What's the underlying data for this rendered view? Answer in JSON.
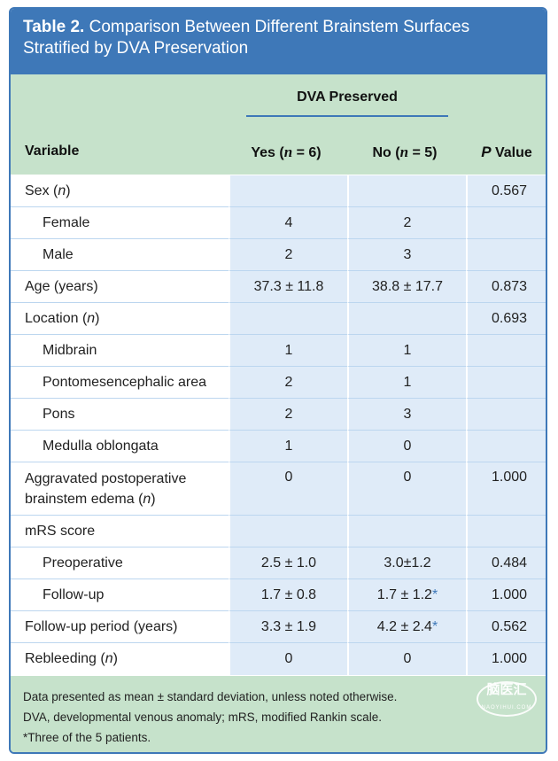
{
  "title": {
    "lead": "Table 2.",
    "text": " Comparison Between Different Brainstem Surfaces Stratified by DVA Preservation"
  },
  "header": {
    "group": "DVA Preserved",
    "variable": "Variable",
    "yes_prefix": "Yes (",
    "yes_n": "n",
    "yes_suffix": " = 6)",
    "no_prefix": "No (",
    "no_n": "n",
    "no_suffix": " = 5)",
    "p_italic": "P",
    "p_suffix": " Value"
  },
  "rows": [
    {
      "label": "Sex (",
      "label_i": "n",
      "label_end": ")",
      "yes": "",
      "no": "",
      "p": "0.567",
      "sub": false
    },
    {
      "label": "Female",
      "yes": "4",
      "no": "2",
      "p": "",
      "sub": true
    },
    {
      "label": "Male",
      "yes": "2",
      "no": "3",
      "p": "",
      "sub": true
    },
    {
      "label": "Age (years)",
      "yes": "37.3 ± 11.8",
      "no": "38.8 ± 17.7",
      "p": "0.873",
      "sub": false
    },
    {
      "label": "Location (",
      "label_i": "n",
      "label_end": ")",
      "yes": "",
      "no": "",
      "p": "0.693",
      "sub": false
    },
    {
      "label": "Midbrain",
      "yes": "1",
      "no": "1",
      "p": "",
      "sub": true
    },
    {
      "label": "Pontomesencephalic area",
      "yes": "2",
      "no": "1",
      "p": "",
      "sub": true
    },
    {
      "label": "Pons",
      "yes": "2",
      "no": "3",
      "p": "",
      "sub": true
    },
    {
      "label": "Medulla oblongata",
      "yes": "1",
      "no": "0",
      "p": "",
      "sub": true
    },
    {
      "label": "Aggravated postoperative",
      "label2": "brainstem edema (",
      "label_i": "n",
      "label_end": ")",
      "yes": "0",
      "no": "0",
      "p": "1.000",
      "sub": false
    },
    {
      "label": "mRS score",
      "yes": "",
      "no": "",
      "p": "",
      "sub": false
    },
    {
      "label": "Preoperative",
      "yes": "2.5 ± 1.0",
      "no": "3.0±1.2",
      "p": "0.484",
      "sub": true
    },
    {
      "label": "Follow-up",
      "yes": "1.7 ± 0.8",
      "no": "1.7 ± 1.2",
      "no_mark": "*",
      "p": "1.000",
      "sub": true
    },
    {
      "label": "Follow-up period (years)",
      "yes": "3.3 ± 1.9",
      "no": "4.2 ± 2.4",
      "no_mark": "*",
      "p": "0.562",
      "sub": false
    },
    {
      "label": "Rebleeding (",
      "label_i": "n",
      "label_end": ")",
      "yes": "0",
      "no": "0",
      "p": "1.000",
      "sub": false
    }
  ],
  "footnotes": [
    "Data presented as mean ± standard deviation, unless noted otherwise.",
    "DVA, developmental venous anomaly; mRS, modified Rankin scale.",
    "*Three of the 5 patients."
  ],
  "watermark": {
    "main": "脑医汇",
    "small": "NAOYIHUI.COM"
  }
}
